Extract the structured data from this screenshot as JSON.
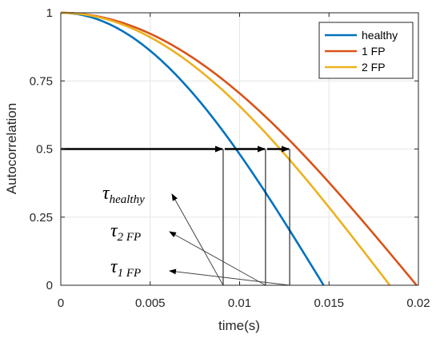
{
  "chart_data": {
    "type": "line",
    "xlabel": "time(s)",
    "ylabel": "Autocorrelation",
    "xlim": [
      0,
      0.02
    ],
    "ylim": [
      0,
      1
    ],
    "xticks": [
      0,
      0.005,
      0.01,
      0.015,
      0.02
    ],
    "xtick_labels": [
      "0",
      "0.005",
      "0.01",
      "0.015",
      "0.02"
    ],
    "yticks": [
      0,
      0.25,
      0.5,
      0.75,
      1
    ],
    "ytick_labels": [
      "0",
      "0.25",
      "0.5",
      "0.75",
      "1"
    ],
    "grid": true,
    "legend_position": "top-right",
    "series": [
      {
        "name": "healthy",
        "color": "#0072BD",
        "zero_crossing": 0.0147
      },
      {
        "name": "1 FP",
        "color": "#D95319",
        "zero_crossing": 0.0199
      },
      {
        "name": "2 FP",
        "color": "#EDB120",
        "zero_crossing": 0.0184
      }
    ],
    "half_level": 0.5,
    "crossing_times": [
      {
        "series": "healthy",
        "x": 0.00908
      },
      {
        "series": "2 FP",
        "x": 0.01145
      },
      {
        "series": "1 FP",
        "x": 0.0128
      }
    ],
    "annotations": [
      {
        "symbol": "τ",
        "subscript": "healthy",
        "points_to": 0.00908
      },
      {
        "symbol": "τ",
        "subscript": "2 FP",
        "points_to": 0.01145
      },
      {
        "symbol": "τ",
        "subscript": "1 FP",
        "points_to": 0.0128
      }
    ]
  }
}
